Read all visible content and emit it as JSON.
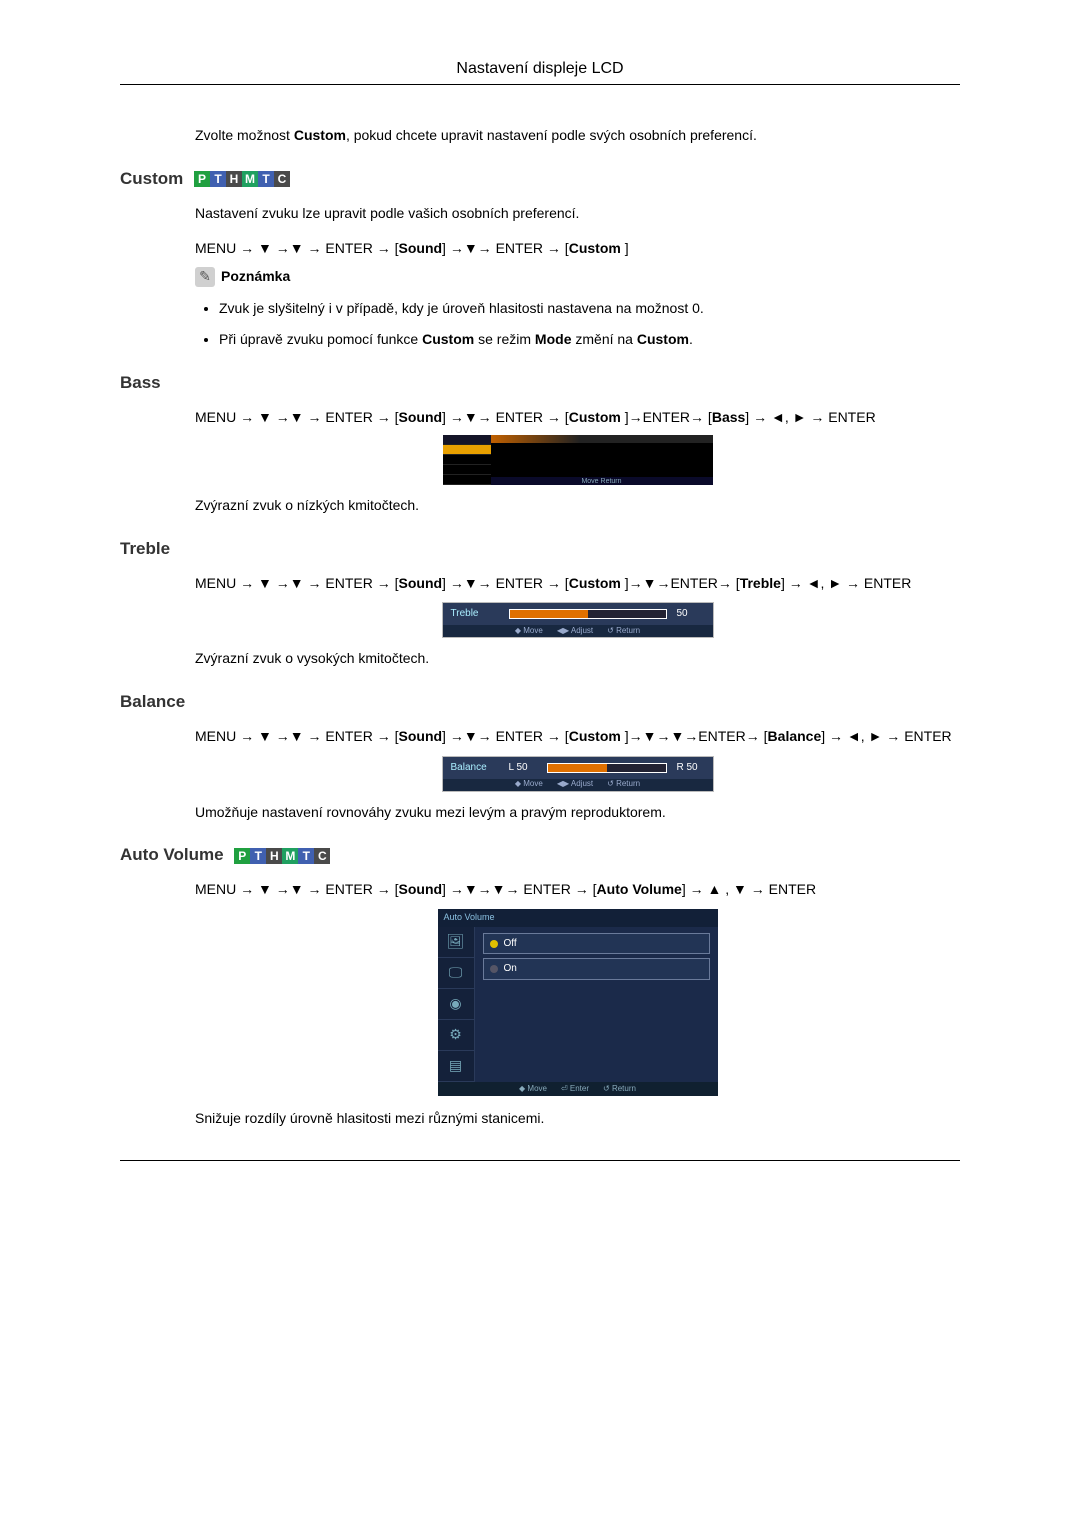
{
  "header": {
    "title": "Nastavení displeje LCD"
  },
  "intro": {
    "customNote_pre": "Zvolte možnost ",
    "customNote_b1": "Custom",
    "customNote_post": ", pokud chcete upravit nastavení podle svých osobních preferencí."
  },
  "badges": {
    "letters": [
      "P",
      "T",
      "H",
      "M",
      "T",
      "C"
    ],
    "colors": [
      "#20a040",
      "#4060b0",
      "#4a4a4a",
      "#20a060",
      "#4060b0",
      "#4a4a4a"
    ]
  },
  "custom": {
    "heading": "Custom",
    "desc": "Nastavení zvuku lze upravit podle vašich osobních preferencí.",
    "path_pre": "MENU → ▼ →▼ → ENTER → [",
    "path_b1": "Sound",
    "path_mid": "] →▼→ ENTER → [",
    "path_b2": "Custom ",
    "path_post": "]",
    "noteLabel": "Poznámka",
    "bullet1": "Zvuk je slyšitelný i v případě, kdy je úroveň hlasitosti nastavena na možnost 0.",
    "bullet2_pre": "Při úpravě zvuku pomocí funkce ",
    "bullet2_b1": "Custom",
    "bullet2_mid": " se režim ",
    "bullet2_b2": "Mode",
    "bullet2_mid2": " změní na ",
    "bullet2_b3": "Custom",
    "bullet2_post": "."
  },
  "bass": {
    "heading": "Bass",
    "path_pre": "MENU → ▼ →▼ → ENTER → [",
    "path_b1": "Sound",
    "path_mid1": "] →▼→ ENTER → [",
    "path_b2": "Custom ",
    "path_mid2": "]→ENTER→ [",
    "path_b3": "Bass",
    "path_post": "] → ◄, ► → ENTER",
    "desc": "Zvýrazní zvuk o nízkých kmitočtech.",
    "osd": {
      "row_sel_bg": "#e8a000",
      "hint": "Move    Return"
    }
  },
  "treble": {
    "heading": "Treble",
    "path_pre": "MENU → ▼ →▼ → ENTER → [",
    "path_b1": "Sound",
    "path_mid1": "] →▼→ ENTER → [",
    "path_b2": "Custom ",
    "path_mid2": "]→▼→ENTER→ [",
    "path_b3": "Treble",
    "path_post": "] → ◄, ► → ENTER",
    "desc": "Zvýrazní zvuk o vysokých kmitočtech.",
    "osd": {
      "label": "Treble",
      "value": "50",
      "fill_left_pct": 0,
      "fill_width_pct": 50,
      "hintMove": "◆ Move",
      "hintAdjust": "◀▶ Adjust",
      "hintReturn": "↺ Return"
    }
  },
  "balance": {
    "heading": "Balance",
    "path_pre": "MENU → ▼ →▼ → ENTER → [",
    "path_b1": "Sound",
    "path_mid1": "] →▼→ ENTER → [",
    "path_b2": "Custom ",
    "path_mid2": "]→▼→▼→ENTER→ [",
    "path_b3": "Balance",
    "path_post": "] → ◄, ► → ENTER",
    "desc": "Umožňuje nastavení rovnováhy zvuku mezi levým a pravým reproduktorem.",
    "osd": {
      "label": "Balance",
      "leftVal": "L 50",
      "rightVal": "R 50",
      "fill_left_pct": 0,
      "fill_width_pct": 50,
      "hintMove": "◆ Move",
      "hintAdjust": "◀▶ Adjust",
      "hintReturn": "↺ Return"
    }
  },
  "autoVolume": {
    "heading": "Auto Volume",
    "path_pre": "MENU → ▼ →▼ → ENTER → [",
    "path_b1": "Sound",
    "path_mid1": "] →▼→▼→ ENTER → [",
    "path_b2": "Auto Volume",
    "path_post": "] → ▲ , ▼ → ENTER",
    "desc": "Snižuje rozdíly úrovně hlasitosti mezi různými stanicemi.",
    "osd": {
      "title": "Auto Volume",
      "opt1": "Off",
      "opt2": "On",
      "opt1_rad_color": "#e0c000",
      "opt2_rad_color": "#556",
      "hintMove": "◆ Move",
      "hintEnter": "⏎ Enter",
      "hintReturn": "↺ Return",
      "icons": [
        "🖼",
        "🖵",
        "◉",
        "⚙",
        "▤"
      ]
    }
  }
}
